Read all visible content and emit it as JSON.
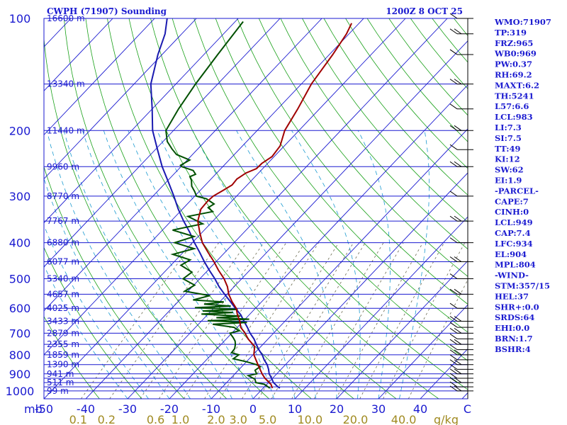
{
  "header": {
    "station": "CWPH (71907) Sounding",
    "time": "1200Z  8 OCT 25"
  },
  "chart_data": {
    "type": "skew-t",
    "pressure_levels": [
      100,
      200,
      300,
      400,
      500,
      600,
      700,
      800,
      900,
      1000
    ],
    "isobars": [
      100,
      150,
      200,
      250,
      300,
      350,
      400,
      450,
      500,
      550,
      600,
      650,
      700,
      750,
      800,
      850,
      900,
      925,
      950,
      975,
      1000
    ],
    "height_labels": [
      {
        "p": 100,
        "label": "16600 m"
      },
      {
        "p": 150,
        "label": "13340 m"
      },
      {
        "p": 200,
        "label": "11440 m"
      },
      {
        "p": 250,
        "label": "9960 m"
      },
      {
        "p": 300,
        "label": "8770 m"
      },
      {
        "p": 350,
        "label": "7767 m"
      },
      {
        "p": 400,
        "label": "6880 m"
      },
      {
        "p": 450,
        "label": "6077 m"
      },
      {
        "p": 500,
        "label": "5340 m"
      },
      {
        "p": 550,
        "label": "4657 m"
      },
      {
        "p": 600,
        "label": "4025 m"
      },
      {
        "p": 650,
        "label": "3433 m"
      },
      {
        "p": 700,
        "label": "2879 m"
      },
      {
        "p": 750,
        "label": "2355 m"
      },
      {
        "p": 800,
        "label": "1859 m"
      },
      {
        "p": 850,
        "label": "1390 m"
      },
      {
        "p": 900,
        "label": "941 m"
      },
      {
        "p": 950,
        "label": "511 m"
      },
      {
        "p": 1000,
        "label": "99 m"
      }
    ],
    "temperature_ticks": [
      -50,
      -40,
      -30,
      -20,
      -10,
      0,
      10,
      20,
      30,
      40
    ],
    "temperature_tick_labels": [
      "-50",
      "-40",
      "-30",
      "-20",
      "-10",
      "0",
      "10",
      "20",
      "30",
      "40"
    ],
    "corner_labels": {
      "pressure_unit": "mb",
      "wind_column": "C"
    },
    "mixing_ratio_labels": [
      "0.1",
      "0.2",
      "0.6",
      "1.0",
      "2.0",
      "3.0",
      "5.0",
      "10.0",
      "20.0",
      "40.0"
    ],
    "mixing_ratio_values": [
      0.1,
      0.2,
      0.6,
      1.0,
      2.0,
      3.0,
      5.0,
      10.0,
      20.0,
      40.0
    ],
    "mixing_ratio_unit": "g/kg",
    "temperature_profile": [
      [
        983,
        4.0
      ],
      [
        975,
        3.2
      ],
      [
        950,
        1.2
      ],
      [
        925,
        -0.2
      ],
      [
        900,
        -1.8
      ],
      [
        875,
        -3.0
      ],
      [
        850,
        -4.4
      ],
      [
        825,
        -6.2
      ],
      [
        800,
        -7.8
      ],
      [
        775,
        -9.8
      ],
      [
        750,
        -11.6
      ],
      [
        725,
        -13.4
      ],
      [
        700,
        -15.6
      ],
      [
        675,
        -17.6
      ],
      [
        650,
        -19.8
      ],
      [
        625,
        -22.0
      ],
      [
        600,
        -24.8
      ],
      [
        575,
        -27.6
      ],
      [
        550,
        -30.6
      ],
      [
        525,
        -33.6
      ],
      [
        500,
        -36.4
      ],
      [
        475,
        -39.6
      ],
      [
        450,
        -42.8
      ],
      [
        425,
        -46.0
      ],
      [
        400,
        -49.5
      ],
      [
        375,
        -53.0
      ],
      [
        350,
        -57.0
      ],
      [
        325,
        -61.0
      ],
      [
        300,
        -65.0
      ],
      [
        275,
        -69.5
      ],
      [
        250,
        -74.5
      ],
      [
        225,
        -79.5
      ],
      [
        200,
        -85.0
      ],
      [
        175,
        -90.0
      ],
      [
        150,
        -96.0
      ],
      [
        125,
        -101.0
      ],
      [
        110,
        -104.0
      ],
      [
        100,
        -107.0
      ]
    ],
    "temperature": [
      [
        983,
        2.2
      ],
      [
        960,
        1.0
      ],
      [
        925,
        -1.8
      ],
      [
        900,
        -3.5
      ],
      [
        850,
        -6.6
      ],
      [
        800,
        -9.8
      ],
      [
        760,
        -11.5
      ],
      [
        725,
        -14.8
      ],
      [
        700,
        -16.8
      ],
      [
        675,
        -19.2
      ],
      [
        650,
        -20.8
      ],
      [
        625,
        -22.8
      ],
      [
        600,
        -24.6
      ],
      [
        575,
        -27.2
      ],
      [
        550,
        -29.6
      ],
      [
        525,
        -31.6
      ],
      [
        500,
        -34.2
      ],
      [
        475,
        -37.4
      ],
      [
        450,
        -40.5
      ],
      [
        425,
        -44.0
      ],
      [
        400,
        -47.6
      ],
      [
        375,
        -50.6
      ],
      [
        350,
        -53.6
      ],
      [
        325,
        -55.6
      ],
      [
        310,
        -55.8
      ],
      [
        300,
        -55.6
      ],
      [
        290,
        -54.6
      ],
      [
        280,
        -53.6
      ],
      [
        270,
        -53.8
      ],
      [
        260,
        -53.0
      ],
      [
        253,
        -51.5
      ],
      [
        245,
        -51.4
      ],
      [
        235,
        -50.5
      ],
      [
        220,
        -51.0
      ],
      [
        200,
        -53.4
      ],
      [
        175,
        -55.2
      ],
      [
        150,
        -57.6
      ],
      [
        125,
        -59.2
      ],
      [
        110,
        -60.6
      ],
      [
        103,
        -61.8
      ]
    ],
    "dewpoint": [
      [
        983,
        1.6
      ],
      [
        960,
        -0.6
      ],
      [
        950,
        -3.0
      ],
      [
        930,
        -4.0
      ],
      [
        910,
        -6.4
      ],
      [
        900,
        -4.8
      ],
      [
        880,
        -6.0
      ],
      [
        860,
        -5.6
      ],
      [
        850,
        -7.0
      ],
      [
        835,
        -10.0
      ],
      [
        820,
        -13.8
      ],
      [
        800,
        -13.4
      ],
      [
        790,
        -15.6
      ],
      [
        770,
        -15.8
      ],
      [
        750,
        -16.6
      ],
      [
        735,
        -17.4
      ],
      [
        720,
        -18.6
      ],
      [
        700,
        -20.4
      ],
      [
        690,
        -18.8
      ],
      [
        675,
        -20.8
      ],
      [
        662,
        -26.6
      ],
      [
        655,
        -18.8
      ],
      [
        648,
        -28.6
      ],
      [
        642,
        -19.0
      ],
      [
        636,
        -27.2
      ],
      [
        630,
        -21.8
      ],
      [
        622,
        -31.6
      ],
      [
        616,
        -24.4
      ],
      [
        610,
        -32.0
      ],
      [
        604,
        -24.0
      ],
      [
        598,
        -34.6
      ],
      [
        592,
        -26.4
      ],
      [
        585,
        -33.2
      ],
      [
        577,
        -29.0
      ],
      [
        570,
        -36.8
      ],
      [
        555,
        -33.8
      ],
      [
        540,
        -40.8
      ],
      [
        520,
        -39.8
      ],
      [
        500,
        -44.0
      ],
      [
        480,
        -43.4
      ],
      [
        460,
        -47.6
      ],
      [
        445,
        -46.6
      ],
      [
        430,
        -52.0
      ],
      [
        415,
        -48.2
      ],
      [
        400,
        -54.2
      ],
      [
        385,
        -51.0
      ],
      [
        370,
        -57.6
      ],
      [
        356,
        -51.8
      ],
      [
        340,
        -57.0
      ],
      [
        330,
        -52.2
      ],
      [
        322,
        -54.2
      ],
      [
        315,
        -53.6
      ],
      [
        305,
        -56.6
      ],
      [
        300,
        -59.6
      ],
      [
        292,
        -61.0
      ],
      [
        282,
        -63.0
      ],
      [
        272,
        -64.4
      ],
      [
        266,
        -65.6
      ],
      [
        262,
        -64.8
      ],
      [
        256,
        -66.2
      ],
      [
        250,
        -69.8
      ],
      [
        248,
        -70.4
      ],
      [
        240,
        -69.4
      ],
      [
        232,
        -73.8
      ],
      [
        224,
        -76.2
      ],
      [
        214,
        -79.0
      ],
      [
        200,
        -81.8
      ],
      [
        175,
        -83.7
      ],
      [
        150,
        -85.3
      ],
      [
        125,
        -86.7
      ],
      [
        102,
        -88.1
      ]
    ],
    "wind_levels": [
      1000,
      975,
      950,
      925,
      900,
      875,
      850,
      825,
      800,
      775,
      750,
      725,
      700,
      675,
      650,
      600,
      550,
      500,
      450,
      400,
      350,
      300,
      250,
      225,
      200,
      175,
      150,
      125,
      110,
      100
    ],
    "xlim": [
      -50,
      50
    ],
    "ylim": [
      1050,
      100
    ]
  },
  "indices": [
    "WMO:71907",
    "TP:319",
    "FRZ:965",
    "WB0:969",
    "PW:0.37",
    "RH:69.2",
    "MAXT:6.2",
    "TH:5241",
    "L57:6.6",
    "LCL:983",
    "LI:7.3",
    "SI:7.5",
    "TT:49",
    "KI:12",
    "SW:62",
    "EI:1.9",
    "-PARCEL-",
    "CAPE:7",
    "CINH:0",
    "LCL:949",
    "CAP:7.4",
    "LFC:934",
    "EL:904",
    "MPL:804",
    "-WIND-",
    "STM:357/15",
    "HEL:37",
    "SHR+:0.0",
    "SRDS:64",
    "EHI:0.0",
    "BRN:1.7",
    "BSHR:4"
  ],
  "colors": {
    "isobar": "#1a1ad0",
    "isotherm": "#1a1ad0",
    "dry_adiabat": "#18a018",
    "moist_adiabat": "#1a9ad0",
    "mixing_ratio": "#6a6a50",
    "temperature": "#a00000",
    "dewpoint": "#005000",
    "parcel": "#1a1ab0"
  }
}
